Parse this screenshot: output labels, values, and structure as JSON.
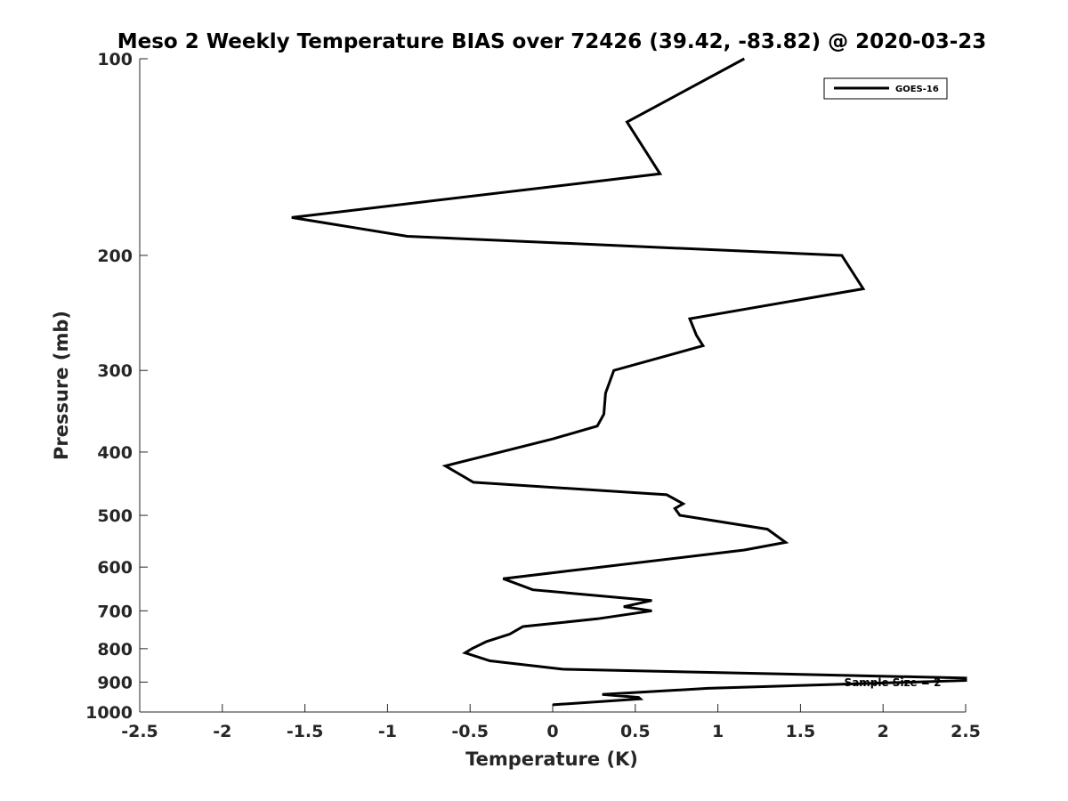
{
  "chart_data": {
    "type": "line",
    "title": "Meso 2 Weekly Temperature BIAS over 72426 (39.42, -83.82) @ 2020-03-23",
    "xlabel": "Temperature (K)",
    "ylabel": "Pressure (mb)",
    "xlim": [
      -2.5,
      2.5
    ],
    "ylim": [
      100,
      1000
    ],
    "y_scale": "log",
    "y_reversed": true,
    "x_ticks": [
      "-2.5",
      "-2",
      "-1.5",
      "-1",
      "-0.5",
      "0",
      "0.5",
      "1",
      "1.5",
      "2",
      "2.5"
    ],
    "y_ticks": [
      "100",
      "200",
      "300",
      "400",
      "500",
      "600",
      "700",
      "800",
      "900",
      "1000"
    ],
    "grid": false,
    "legend_position": "top-right",
    "series": [
      {
        "name": "GOES-16",
        "color": "#000000",
        "points": [
          [
            1.16,
            100
          ],
          [
            0.45,
            125
          ],
          [
            0.65,
            150
          ],
          [
            -1.58,
            175
          ],
          [
            -0.88,
            187
          ],
          [
            1.75,
            200
          ],
          [
            1.88,
            225
          ],
          [
            0.83,
            250
          ],
          [
            0.87,
            265
          ],
          [
            0.91,
            275
          ],
          [
            0.37,
            300
          ],
          [
            0.32,
            325
          ],
          [
            0.31,
            350
          ],
          [
            0.27,
            365
          ],
          [
            0.0,
            382
          ],
          [
            -0.65,
            420
          ],
          [
            -0.48,
            445
          ],
          [
            0.69,
            465
          ],
          [
            0.79,
            480
          ],
          [
            0.74,
            488
          ],
          [
            0.77,
            500
          ],
          [
            1.3,
            525
          ],
          [
            1.41,
            550
          ],
          [
            1.16,
            565
          ],
          [
            0.29,
            600
          ],
          [
            -0.3,
            625
          ],
          [
            -0.12,
            650
          ],
          [
            0.6,
            675
          ],
          [
            0.43,
            690
          ],
          [
            0.6,
            700
          ],
          [
            0.27,
            720
          ],
          [
            -0.18,
            740
          ],
          [
            -0.26,
            760
          ],
          [
            -0.4,
            780
          ],
          [
            -0.49,
            800
          ],
          [
            -0.53,
            812
          ],
          [
            -0.38,
            835
          ],
          [
            0.06,
            860
          ],
          [
            2.5,
            887
          ],
          [
            2.5,
            895
          ],
          [
            0.94,
            920
          ],
          [
            0.3,
            940
          ],
          [
            0.52,
            950
          ],
          [
            0.53,
            955
          ],
          [
            0.0,
            975
          ]
        ]
      }
    ],
    "annotations": [
      "Sample Size = 2"
    ]
  }
}
